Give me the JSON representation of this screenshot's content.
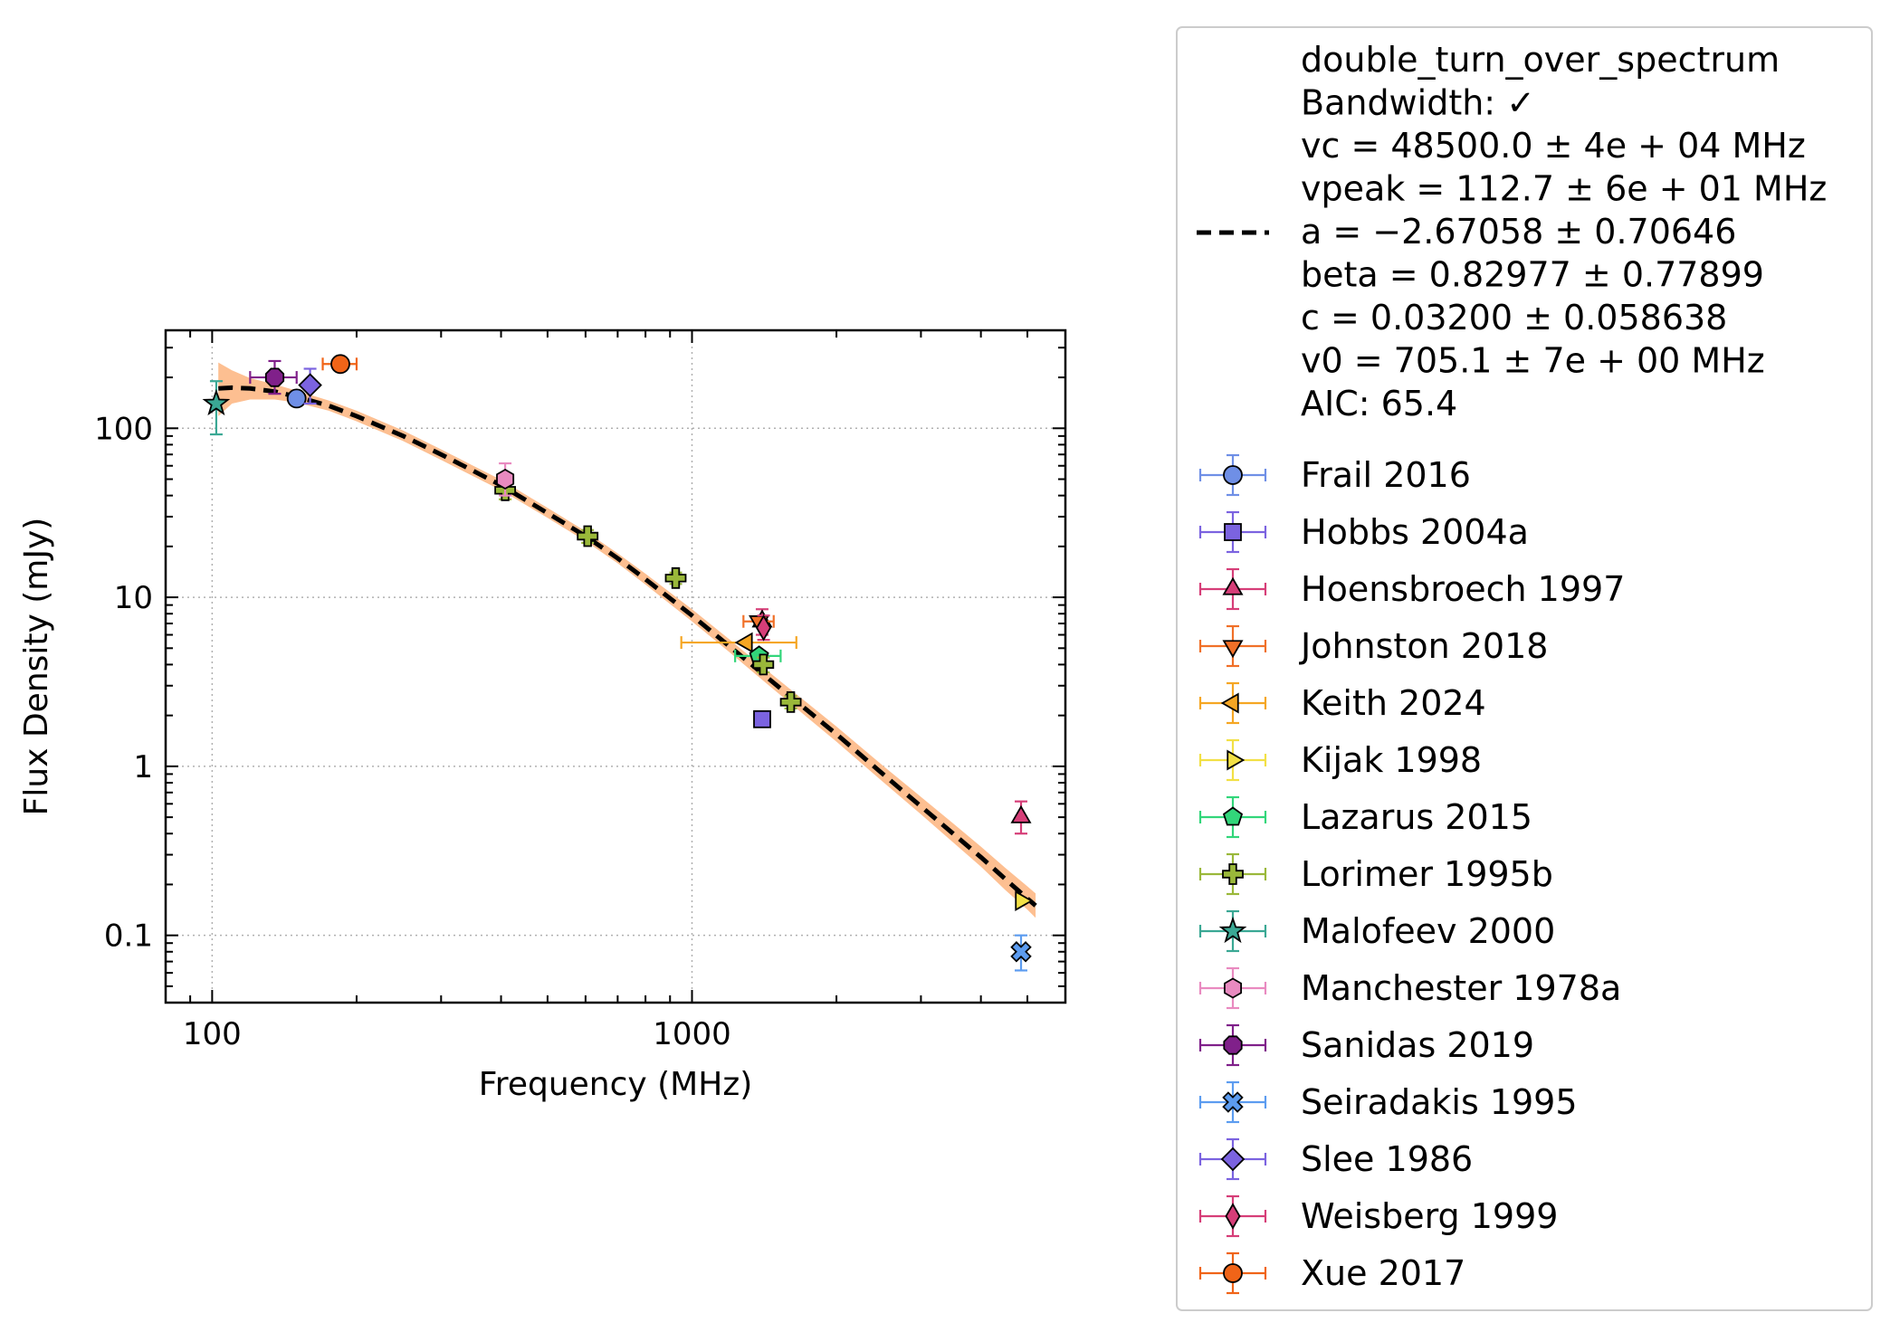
{
  "chart_data": {
    "type": "scatter",
    "x_scale": "log",
    "y_scale": "log",
    "xlabel": "Frequency (MHz)",
    "ylabel": "Flux Density (mJy)",
    "xlim": [
      80,
      6000
    ],
    "ylim": [
      0.04,
      380
    ],
    "grid": true,
    "legend_position": "outside-right",
    "x_ticks": [
      {
        "value": 100,
        "label": "100"
      },
      {
        "value": 1000,
        "label": "1000"
      }
    ],
    "y_ticks": [
      {
        "value": 0.1,
        "label": "0.1"
      },
      {
        "value": 1,
        "label": "1"
      },
      {
        "value": 10,
        "label": "10"
      },
      {
        "value": 100,
        "label": "100"
      }
    ],
    "fit": {
      "model": "double_turn_over_spectrum",
      "color": "#000000",
      "band_color": "#fdbf91",
      "legend_lines": [
        "double_turn_over_spectrum",
        "Bandwidth: ✓",
        "vc = 48500.0 ± 4e + 04 MHz",
        "vpeak = 112.7 ± 6e + 01 MHz",
        "a = −2.67058 ± 0.70646",
        "beta = 0.82977 ± 0.77899",
        "c = 0.03200 ± 0.058638",
        "v0 = 705.1 ± 7e + 00 MHz",
        "AIC: 65.4"
      ],
      "curve": [
        {
          "x": 103,
          "y": 172,
          "lo": 118,
          "hi": 245
        },
        {
          "x": 110,
          "y": 174,
          "lo": 140,
          "hi": 220
        },
        {
          "x": 120,
          "y": 172,
          "lo": 148,
          "hi": 198
        },
        {
          "x": 135,
          "y": 165,
          "lo": 148,
          "hi": 182
        },
        {
          "x": 150,
          "y": 154,
          "lo": 142,
          "hi": 167
        },
        {
          "x": 175,
          "y": 136,
          "lo": 127,
          "hi": 146
        },
        {
          "x": 200,
          "y": 118,
          "lo": 110,
          "hi": 127
        },
        {
          "x": 250,
          "y": 90,
          "lo": 84,
          "hi": 97
        },
        {
          "x": 300,
          "y": 70,
          "lo": 65,
          "hi": 75
        },
        {
          "x": 350,
          "y": 56,
          "lo": 52,
          "hi": 60
        },
        {
          "x": 400,
          "y": 46,
          "lo": 43,
          "hi": 49.5
        },
        {
          "x": 500,
          "y": 31.5,
          "lo": 29.5,
          "hi": 33.8
        },
        {
          "x": 600,
          "y": 23,
          "lo": 21.5,
          "hi": 24.6
        },
        {
          "x": 700,
          "y": 17,
          "lo": 15.9,
          "hi": 18.2
        },
        {
          "x": 800,
          "y": 12.8,
          "lo": 11.9,
          "hi": 13.8
        },
        {
          "x": 1000,
          "y": 7.8,
          "lo": 7.2,
          "hi": 8.5
        },
        {
          "x": 1200,
          "y": 5.1,
          "lo": 4.7,
          "hi": 5.6
        },
        {
          "x": 1400,
          "y": 3.55,
          "lo": 3.25,
          "hi": 3.9
        },
        {
          "x": 1600,
          "y": 2.6,
          "lo": 2.37,
          "hi": 2.87
        },
        {
          "x": 2000,
          "y": 1.55,
          "lo": 1.4,
          "hi": 1.72
        },
        {
          "x": 2500,
          "y": 0.9,
          "lo": 0.81,
          "hi": 1.01
        },
        {
          "x": 3000,
          "y": 0.58,
          "lo": 0.52,
          "hi": 0.66
        },
        {
          "x": 3500,
          "y": 0.4,
          "lo": 0.355,
          "hi": 0.46
        },
        {
          "x": 4000,
          "y": 0.29,
          "lo": 0.255,
          "hi": 0.335
        },
        {
          "x": 4500,
          "y": 0.215,
          "lo": 0.185,
          "hi": 0.25
        },
        {
          "x": 5000,
          "y": 0.165,
          "lo": 0.142,
          "hi": 0.195
        },
        {
          "x": 5200,
          "y": 0.15,
          "lo": 0.127,
          "hi": 0.177
        }
      ]
    },
    "series": [
      {
        "name": "Frail 2016",
        "marker": "circle",
        "color": "#6f8fe6",
        "points": [
          {
            "x": 150,
            "y": 150,
            "xlo": 150,
            "xhi": 150,
            "ylo": 150,
            "yhi": 150
          }
        ]
      },
      {
        "name": "Hobbs 2004a",
        "marker": "square",
        "color": "#7b63e0",
        "points": [
          {
            "x": 1400,
            "y": 1.9,
            "xlo": 1400,
            "xhi": 1400,
            "ylo": 1.9,
            "yhi": 1.9
          }
        ]
      },
      {
        "name": "Hoensbroech 1997",
        "marker": "triangle-up",
        "color": "#d63e78",
        "points": [
          {
            "x": 1400,
            "y": 7.2,
            "xlo": 1400,
            "xhi": 1400,
            "ylo": 6,
            "yhi": 8.5
          },
          {
            "x": 4850,
            "y": 0.5,
            "xlo": 4850,
            "xhi": 4850,
            "ylo": 0.4,
            "yhi": 0.62
          }
        ]
      },
      {
        "name": "Johnston 2018",
        "marker": "triangle-down",
        "color": "#f07028",
        "points": [
          {
            "x": 1380,
            "y": 7.2,
            "xlo": 1280,
            "xhi": 1480,
            "ylo": 7.2,
            "yhi": 7.2
          }
        ]
      },
      {
        "name": "Keith 2024",
        "marker": "triangle-left",
        "color": "#f5a623",
        "points": [
          {
            "x": 1300,
            "y": 5.4,
            "xlo": 950,
            "xhi": 1650,
            "ylo": 5.4,
            "yhi": 5.4
          }
        ]
      },
      {
        "name": "Kijak 1998",
        "marker": "triangle-right",
        "color": "#f2e045",
        "points": [
          {
            "x": 4850,
            "y": 0.16,
            "xlo": 4850,
            "xhi": 4850,
            "ylo": 0.16,
            "yhi": 0.16
          }
        ]
      },
      {
        "name": "Lazarus 2015",
        "marker": "pentagon",
        "color": "#32d67a",
        "points": [
          {
            "x": 1380,
            "y": 4.5,
            "xlo": 1230,
            "xhi": 1530,
            "ylo": 4.5,
            "yhi": 4.5
          }
        ]
      },
      {
        "name": "Lorimer 1995b",
        "marker": "plus",
        "color": "#9ab83a",
        "points": [
          {
            "x": 408,
            "y": 43,
            "xlo": 408,
            "xhi": 408,
            "ylo": 38,
            "yhi": 48
          },
          {
            "x": 606,
            "y": 23,
            "xlo": 606,
            "xhi": 606,
            "ylo": 21,
            "yhi": 25
          },
          {
            "x": 925,
            "y": 13,
            "xlo": 925,
            "xhi": 925,
            "ylo": 12,
            "yhi": 14
          },
          {
            "x": 1408,
            "y": 4,
            "xlo": 1408,
            "xhi": 1408,
            "ylo": 3.6,
            "yhi": 4.4
          },
          {
            "x": 1606,
            "y": 2.4,
            "xlo": 1606,
            "xhi": 1606,
            "ylo": 2.2,
            "yhi": 2.6
          }
        ]
      },
      {
        "name": "Malofeev 2000",
        "marker": "star",
        "color": "#3aa894",
        "points": [
          {
            "x": 102,
            "y": 140,
            "xlo": 102,
            "xhi": 102,
            "ylo": 92,
            "yhi": 190
          }
        ]
      },
      {
        "name": "Manchester 1978a",
        "marker": "hexagon",
        "color": "#e98ac0",
        "points": [
          {
            "x": 408,
            "y": 50,
            "xlo": 408,
            "xhi": 408,
            "ylo": 40,
            "yhi": 62
          }
        ]
      },
      {
        "name": "Sanidas 2019",
        "marker": "octagon",
        "color": "#80208a",
        "points": [
          {
            "x": 135,
            "y": 200,
            "xlo": 120,
            "xhi": 150,
            "ylo": 160,
            "yhi": 250
          }
        ]
      },
      {
        "name": "Seiradakis 1995",
        "marker": "x",
        "color": "#5c9cf0",
        "points": [
          {
            "x": 4850,
            "y": 0.08,
            "xlo": 4850,
            "xhi": 4850,
            "ylo": 0.062,
            "yhi": 0.1
          }
        ]
      },
      {
        "name": "Slee 1986",
        "marker": "diamond",
        "color": "#7b63e0",
        "points": [
          {
            "x": 160,
            "y": 180,
            "xlo": 160,
            "xhi": 160,
            "ylo": 140,
            "yhi": 225
          }
        ]
      },
      {
        "name": "Weisberg 1999",
        "marker": "thin-diamond",
        "color": "#d63e78",
        "points": [
          {
            "x": 1410,
            "y": 6.6,
            "xlo": 1410,
            "xhi": 1410,
            "ylo": 5.6,
            "yhi": 7.8
          }
        ]
      },
      {
        "name": "Xue 2017",
        "marker": "circle",
        "color": "#f06418",
        "points": [
          {
            "x": 185,
            "y": 240,
            "xlo": 170,
            "xhi": 200,
            "ylo": 240,
            "yhi": 240
          }
        ]
      }
    ]
  }
}
